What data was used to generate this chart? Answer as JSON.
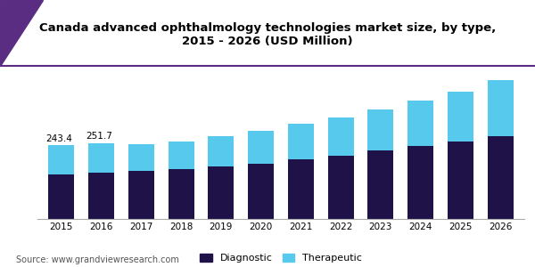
{
  "title": "Canada advanced ophthalmology technologies market size, by type,\n2015 - 2026 (USD Million)",
  "years": [
    2015,
    2016,
    2017,
    2018,
    2019,
    2020,
    2021,
    2022,
    2023,
    2024,
    2025,
    2026
  ],
  "diagnostic": [
    148,
    153,
    158,
    165,
    173,
    184,
    197,
    210,
    226,
    241,
    257,
    274
  ],
  "therapeutic": [
    95.4,
    98.7,
    90,
    93,
    100,
    108,
    118,
    125,
    138,
    150,
    165,
    185
  ],
  "label_2015": "243.4",
  "label_2016": "251.7",
  "diagnostic_color": "#1e1248",
  "therapeutic_color": "#57c9ed",
  "background_color": "#ffffff",
  "source_text": "Source: www.grandviewresearch.com",
  "legend_diagnostic": "Diagnostic",
  "legend_therapeutic": "Therapeutic",
  "title_fontsize": 9.5,
  "tick_fontsize": 7.5,
  "legend_fontsize": 8,
  "source_fontsize": 7,
  "ylim": [
    0,
    460
  ],
  "header_line_color": "#5a2d82",
  "header_bg_color": "#f5f5f5"
}
